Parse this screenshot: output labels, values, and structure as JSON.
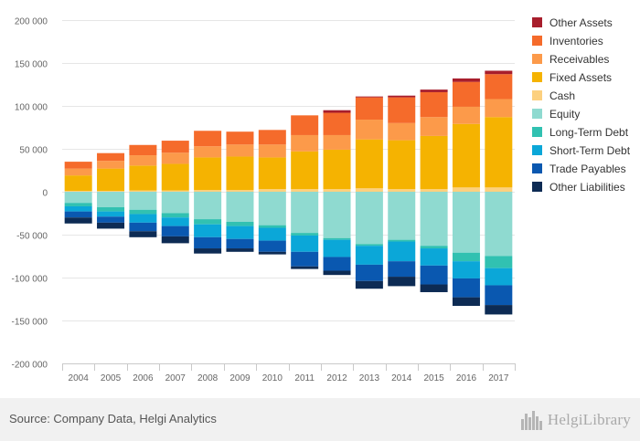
{
  "chart_data": {
    "type": "bar",
    "stacked": true,
    "categories": [
      "2004",
      "2005",
      "2006",
      "2007",
      "2008",
      "2009",
      "2010",
      "2011",
      "2012",
      "2013",
      "2014",
      "2015",
      "2016",
      "2017"
    ],
    "ylim": [
      -200000,
      200000
    ],
    "yticks": [
      -200000,
      -150000,
      -100000,
      -50000,
      0,
      50000,
      100000,
      150000,
      200000
    ],
    "ytick_labels": [
      "-200 000",
      "-150 000",
      "-100 000",
      "-50 000",
      "0",
      "50 000",
      "100 000",
      "150 000",
      "200 000"
    ],
    "grid": true,
    "legend_position": "right",
    "assets": [
      {
        "name": "Cash",
        "color": "#fcd07f",
        "values": [
          1000,
          1000,
          1500,
          1500,
          2000,
          2000,
          3000,
          3000,
          3000,
          4000,
          3000,
          3000,
          5000,
          5000
        ]
      },
      {
        "name": "Fixed Assets",
        "color": "#f5b301",
        "values": [
          18000,
          26000,
          29000,
          31000,
          38000,
          39000,
          37000,
          44000,
          46000,
          57000,
          57000,
          62000,
          74000,
          82000
        ]
      },
      {
        "name": "Receivables",
        "color": "#fc9a4a",
        "values": [
          8000,
          9000,
          12000,
          13000,
          13000,
          14000,
          15000,
          19000,
          17000,
          23000,
          20000,
          22000,
          20000,
          21000
        ]
      },
      {
        "name": "Inventories",
        "color": "#f56b2b",
        "values": [
          8000,
          9000,
          12000,
          14000,
          18000,
          15000,
          17000,
          23000,
          26000,
          26000,
          30000,
          29000,
          29000,
          29000
        ]
      },
      {
        "name": "Other Assets",
        "color": "#a81e2c",
        "values": [
          0,
          0,
          0,
          0,
          0,
          0,
          0,
          0,
          3000,
          1000,
          2000,
          3000,
          4000,
          4000
        ]
      }
    ],
    "liabilities": [
      {
        "name": "Equity",
        "color": "#8fdad0",
        "values": [
          -13000,
          -18000,
          -21000,
          -25000,
          -32000,
          -35000,
          -39000,
          -48000,
          -54000,
          -61000,
          -56000,
          -63000,
          -71000,
          -75000
        ]
      },
      {
        "name": "Long-Term Debt",
        "color": "#31c1b1",
        "values": [
          -4000,
          -5000,
          -5000,
          -5000,
          -6000,
          -5000,
          -3000,
          -3000,
          -2000,
          -2000,
          -2000,
          -3000,
          -10000,
          -14000
        ]
      },
      {
        "name": "Short-Term Debt",
        "color": "#0ba7d8",
        "values": [
          -6000,
          -6000,
          -10000,
          -10000,
          -15000,
          -15000,
          -15000,
          -19000,
          -20000,
          -22000,
          -23000,
          -20000,
          -20000,
          -20000
        ]
      },
      {
        "name": "Trade Payables",
        "color": "#0a58b0",
        "values": [
          -7000,
          -7000,
          -10000,
          -12000,
          -13000,
          -11000,
          -13000,
          -17000,
          -16000,
          -19000,
          -18000,
          -22000,
          -22000,
          -23000
        ]
      },
      {
        "name": "Other Liabilities",
        "color": "#0d2b54",
        "values": [
          -7000,
          -7000,
          -7000,
          -8000,
          -6000,
          -4000,
          -3000,
          -3000,
          -5000,
          -9000,
          -11000,
          -9000,
          -10000,
          -11000
        ]
      }
    ],
    "legend_order": [
      "Other Assets",
      "Inventories",
      "Receivables",
      "Fixed Assets",
      "Cash",
      "Equity",
      "Long-Term Debt",
      "Short-Term Debt",
      "Trade Payables",
      "Other Liabilities"
    ]
  },
  "footer": {
    "source": "Source: Company Data, Helgi Analytics",
    "logo_text": "HelgiLibrary",
    "logo_icon": "city-skyline-icon"
  }
}
